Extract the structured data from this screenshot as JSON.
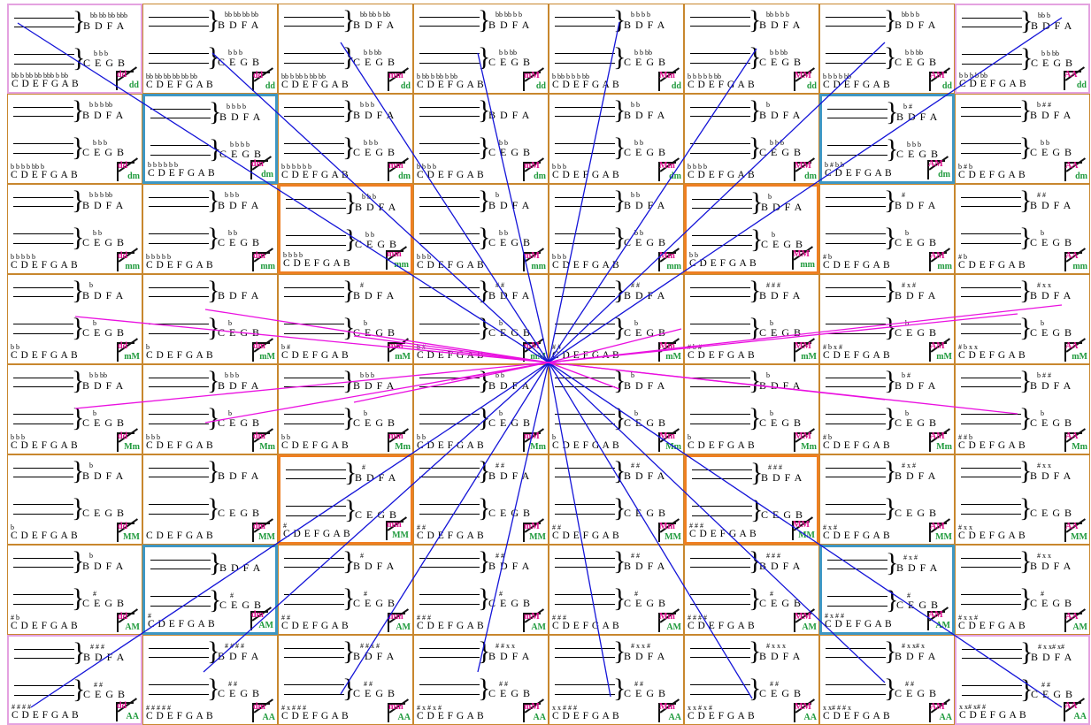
{
  "grid": {
    "rows": [
      [
        {
          "top": "bb bb bb bbb",
          "top_label": "B D F A",
          "mid": "b b b",
          "mid_label": "C E G B",
          "bot_acc": "bb b bb bb bbb b bb",
          "bot_label": "C D E F G A B",
          "badge": [
            "dd",
            "dd"
          ]
        },
        {
          "top": "bb bb bb bb",
          "top_label": "B D F A",
          "mid": "b b b",
          "mid_label": "C E G B",
          "bot_acc": "bb bb bb bb bb bb",
          "bot_label": "C D E F G A B",
          "badge": [
            "dd",
            "dd"
          ]
        },
        {
          "top": "bb bb b bb",
          "top_label": "B D F A",
          "mid": "b b bb",
          "mid_label": "C E G B",
          "bot_acc": "bb b bb b bb bb",
          "bot_label": "C D E F G A B",
          "badge": [
            "mm",
            "dd"
          ]
        },
        {
          "top": "bb bb b b",
          "top_label": "B D F A",
          "mid": "b b bb",
          "mid_label": "C E G B",
          "bot_acc": "b bb b bb b bb",
          "bot_label": "C D E F G A B",
          "badge": [
            "mM",
            "dd"
          ]
        },
        {
          "top": "b b b b",
          "top_label": "B D F A",
          "mid": "b b bb",
          "mid_label": "C E G B",
          "bot_acc": "b bb b b b bb",
          "bot_label": "C D E F G A B",
          "badge": [
            "Mm",
            "dd"
          ]
        },
        {
          "top": "bb b b b",
          "top_label": "B D F A",
          "mid": "b b bb",
          "mid_label": "C E G B",
          "bot_acc": "b b b b b bb",
          "bot_label": "C D E F G A B",
          "badge": [
            "MM",
            "dd"
          ]
        },
        {
          "top": "bb b b",
          "top_label": "B D F A",
          "mid": "b b bb",
          "mid_label": "C E G B",
          "bot_acc": "b b b b bb",
          "bot_label": "C D E F G A B",
          "badge": [
            "AM",
            "dd"
          ]
        },
        {
          "top": "bb b",
          "top_label": "B D F A",
          "mid": "b b bb",
          "mid_label": "C E G B",
          "bot_acc": "b b b b bb",
          "bot_label": "C D E F G A B",
          "badge": [
            "AA",
            "dd"
          ]
        }
      ],
      [
        {
          "top": "b b b bb",
          "top_label": "B D F A",
          "mid": "b b b",
          "mid_label": "C E G B",
          "bot_acc": "b b b b bb b",
          "bot_label": "C D E F G A B",
          "badge": [
            "dd",
            "dm"
          ]
        },
        {
          "top": "b b b b",
          "top_label": "B D F A",
          "mid": "b b b b",
          "mid_label": "C E G B",
          "bot_acc": "b b b b b b",
          "bot_label": "C D E F G A B",
          "badge": [
            "dm",
            "dm"
          ]
        },
        {
          "top": "b b b",
          "top_label": "B D F A",
          "mid": "b b b",
          "mid_label": "C E G B",
          "bot_acc": "b b b b b b",
          "bot_label": "C D E F G A B",
          "badge": [
            "mm",
            "dm"
          ]
        },
        {
          "top": "",
          "top_label": "B D F A",
          "mid": "b b",
          "mid_label": "C E G B",
          "bot_acc": "b b b b",
          "bot_label": "C D E F G A B",
          "badge": [
            "mM",
            "dm"
          ]
        },
        {
          "top": "b b",
          "top_label": "B D F A",
          "mid": "b b",
          "mid_label": "C E G B",
          "bot_acc": "b b b",
          "bot_label": "C D E F G A B",
          "badge": [
            "Mm",
            "dm"
          ]
        },
        {
          "top": "b",
          "top_label": "B D F A",
          "mid": "b b b",
          "mid_label": "C E G B",
          "bot_acc": "b b b b",
          "bot_label": "C D E F G A B",
          "badge": [
            "MM",
            "dm"
          ]
        },
        {
          "top": "b #",
          "top_label": "B D F A",
          "mid": "b b b",
          "mid_label": "C E G B",
          "bot_acc": "b # b b",
          "bot_label": "C D E F G A B",
          "badge": [
            "AM",
            "dm"
          ]
        },
        {
          "top": "b # #",
          "top_label": "B D F A",
          "mid": "b b",
          "mid_label": "C E G B",
          "bot_acc": "b # b",
          "bot_label": "C D E F G A B",
          "badge": [
            "AA",
            "dm"
          ]
        }
      ],
      [
        {
          "top": "b b b bb",
          "top_label": "B D F A",
          "mid": "b b",
          "mid_label": "C E G B",
          "bot_acc": "b b b b b",
          "bot_label": "C D E F G A B",
          "badge": [
            "dd",
            "mm"
          ]
        },
        {
          "top": "b b b",
          "top_label": "B D F A",
          "mid": "b b",
          "mid_label": "C E G B",
          "bot_acc": "b b b b b",
          "bot_label": "C D E F G A B",
          "badge": [
            "dm",
            "mm"
          ]
        },
        {
          "top": "b b b",
          "top_label": "B D F A",
          "mid": "b b",
          "mid_label": "C E G B",
          "bot_acc": "b b b b",
          "bot_label": "C D E F G A B",
          "badge": [
            "mm",
            "mm"
          ]
        },
        {
          "top": "b",
          "top_label": "B D F A",
          "mid": "b b",
          "mid_label": "C E G B",
          "bot_acc": "b b b",
          "bot_label": "C D E F G A B",
          "badge": [
            "mM",
            "mm"
          ]
        },
        {
          "top": "b b",
          "top_label": "B D F A",
          "mid": "b b",
          "mid_label": "C E G B",
          "bot_acc": "b b b",
          "bot_label": "C D E F G A B",
          "badge": [
            "Mm",
            "mm"
          ]
        },
        {
          "top": "b",
          "top_label": "B D F A",
          "mid": "b",
          "mid_label": "C E G B",
          "bot_acc": "b b",
          "bot_label": "C D E F G A B",
          "badge": [
            "MM",
            "mm"
          ]
        },
        {
          "top": "#",
          "top_label": "B D F A",
          "mid": "b",
          "mid_label": "C E G B",
          "bot_acc": "# b",
          "bot_label": "C D E F G A B",
          "badge": [
            "AM",
            "mm"
          ]
        },
        {
          "top": "# #",
          "top_label": "B D F A",
          "mid": "b",
          "mid_label": "C E G B",
          "bot_acc": "# b",
          "bot_label": "C D E F G A B",
          "badge": [
            "AA",
            "mm"
          ]
        }
      ],
      [
        {
          "top": "b",
          "top_label": "B D F A",
          "mid": "b",
          "mid_label": "C E G B",
          "bot_acc": "b b",
          "bot_label": "C D E F G A B",
          "badge": [
            "dd",
            "mM"
          ]
        },
        {
          "top": "",
          "top_label": "B D F A",
          "mid": "b",
          "mid_label": "C E G B",
          "bot_acc": "b",
          "bot_label": "C D E F G A B",
          "badge": [
            "dm",
            "mM"
          ]
        },
        {
          "top": "#",
          "top_label": "B D F A",
          "mid": "b",
          "mid_label": "C E G B",
          "bot_acc": "b #",
          "bot_label": "C D E F G A B",
          "badge": [
            "mm",
            "mM"
          ]
        },
        {
          "top": "# #",
          "top_label": "B D F A",
          "mid": "b",
          "mid_label": "C E G B",
          "bot_acc": "b #",
          "bot_label": "C D E F G A B",
          "badge": [
            "mM",
            "mM"
          ]
        },
        {
          "top": "# #",
          "top_label": "B D F A",
          "mid": "b",
          "mid_label": "C E G B",
          "bot_acc": "# #",
          "bot_label": "C D E F G A B",
          "badge": [
            "Mm",
            "mM"
          ]
        },
        {
          "top": "# # #",
          "top_label": "B D F A",
          "mid": "b",
          "mid_label": "C E G B",
          "bot_acc": "# b #",
          "bot_label": "C D E F G A B",
          "badge": [
            "MM",
            "mM"
          ]
        },
        {
          "top": "# x #",
          "top_label": "B D F A",
          "mid": "b",
          "mid_label": "C E G B",
          "bot_acc": "# b x #",
          "bot_label": "C D E F G A B",
          "badge": [
            "AM",
            "mM"
          ]
        },
        {
          "top": "# x x",
          "top_label": "B D F A",
          "mid": "b",
          "mid_label": "C E G B",
          "bot_acc": "# b x x",
          "bot_label": "C D E F G A B",
          "badge": [
            "AA",
            "mM"
          ]
        }
      ],
      [
        {
          "top": "b b bb",
          "top_label": "B D F A",
          "mid": "b",
          "mid_label": "C E G B",
          "bot_acc": "b b b",
          "bot_label": "C D E F G A B",
          "badge": [
            "dd",
            "Mm"
          ]
        },
        {
          "top": "b b b",
          "top_label": "B D F A",
          "mid": "b",
          "mid_label": "C E G B",
          "bot_acc": "b b b",
          "bot_label": "C D E F G A B",
          "badge": [
            "dm",
            "Mm"
          ]
        },
        {
          "top": "b b b",
          "top_label": "B D F A",
          "mid": "b",
          "mid_label": "C E G B",
          "bot_acc": "b b",
          "bot_label": "C D E F G A B",
          "badge": [
            "mm",
            "Mm"
          ]
        },
        {
          "top": "b b",
          "top_label": "B D F A",
          "mid": "b",
          "mid_label": "C E G B",
          "bot_acc": "b b",
          "bot_label": "C D E F G A B",
          "badge": [
            "mM",
            "Mm"
          ]
        },
        {
          "top": "b",
          "top_label": "B D F A",
          "mid": "b",
          "mid_label": "C E G B",
          "bot_acc": "b",
          "bot_label": "C D E F G A B",
          "badge": [
            "Mm",
            "Mm"
          ]
        },
        {
          "top": "b",
          "top_label": "B D F A",
          "mid": "b",
          "mid_label": "C E G B",
          "bot_acc": "b",
          "bot_label": "C D E F G A B",
          "badge": [
            "MM",
            "Mm"
          ]
        },
        {
          "top": "b #",
          "top_label": "B D F A",
          "mid": "b",
          "mid_label": "C E G B",
          "bot_acc": "# b",
          "bot_label": "C D E F G A B",
          "badge": [
            "AM",
            "Mm"
          ]
        },
        {
          "top": "b # #",
          "top_label": "B D F A",
          "mid": "b",
          "mid_label": "C E G B",
          "bot_acc": "# # b",
          "bot_label": "C D E F G A B",
          "badge": [
            "AA",
            "Mm"
          ]
        }
      ],
      [
        {
          "top": "b",
          "top_label": "B D F A",
          "mid": "",
          "mid_label": "C E G B",
          "bot_acc": "b",
          "bot_label": "C D E F G A B",
          "badge": [
            "dd",
            "MM"
          ]
        },
        {
          "top": "",
          "top_label": "B D F A",
          "mid": "",
          "mid_label": "C E G B",
          "bot_acc": "",
          "bot_label": "C D E F G A B",
          "badge": [
            "dm",
            "MM"
          ]
        },
        {
          "top": "#",
          "top_label": "B D F A",
          "mid": "",
          "mid_label": "C E G B",
          "bot_acc": "#",
          "bot_label": "C D E F G A B",
          "badge": [
            "mm",
            "MM"
          ]
        },
        {
          "top": "# #",
          "top_label": "B D F A",
          "mid": "",
          "mid_label": "C E G B",
          "bot_acc": "# #",
          "bot_label": "C D E F G A B",
          "badge": [
            "mM",
            "MM"
          ]
        },
        {
          "top": "# #",
          "top_label": "B D F A",
          "mid": "",
          "mid_label": "C E G B",
          "bot_acc": "# #",
          "bot_label": "C D E F G A B",
          "badge": [
            "Mm",
            "MM"
          ]
        },
        {
          "top": "# # #",
          "top_label": "B D F A",
          "mid": "",
          "mid_label": "C E G B",
          "bot_acc": "# # #",
          "bot_label": "C D E F G A B",
          "badge": [
            "MM",
            "MM"
          ]
        },
        {
          "top": "# x #",
          "top_label": "B D F A",
          "mid": "",
          "mid_label": "C E G B",
          "bot_acc": "# x #",
          "bot_label": "C D E F G A B",
          "badge": [
            "AM",
            "MM"
          ]
        },
        {
          "top": "# x x",
          "top_label": "B D F A",
          "mid": "",
          "mid_label": "C E G B",
          "bot_acc": "# x x",
          "bot_label": "C D E F G A B",
          "badge": [
            "AA",
            "MM"
          ]
        }
      ],
      [
        {
          "top": "b",
          "top_label": "B D F A",
          "mid": "#",
          "mid_label": "C E G B",
          "bot_acc": "# b",
          "bot_label": "C D E F G A B",
          "badge": [
            "dd",
            "AM"
          ]
        },
        {
          "top": "",
          "top_label": "B D F A",
          "mid": "#",
          "mid_label": "C E G B",
          "bot_acc": "#",
          "bot_label": "C D E F G A B",
          "badge": [
            "dm",
            "AM"
          ]
        },
        {
          "top": "#",
          "top_label": "B D F A",
          "mid": "#",
          "mid_label": "C E G B",
          "bot_acc": "# #",
          "bot_label": "C D E F G A B",
          "badge": [
            "mm",
            "AM"
          ]
        },
        {
          "top": "# #",
          "top_label": "B D F A",
          "mid": "#",
          "mid_label": "C E G B",
          "bot_acc": "# # #",
          "bot_label": "C D E F G A B",
          "badge": [
            "mM",
            "AM"
          ]
        },
        {
          "top": "# #",
          "top_label": "B D F A",
          "mid": "#",
          "mid_label": "C E G B",
          "bot_acc": "# # #",
          "bot_label": "C D E F G A B",
          "badge": [
            "Mm",
            "AM"
          ]
        },
        {
          "top": "# # #",
          "top_label": "B D F A",
          "mid": "#",
          "mid_label": "C E G B",
          "bot_acc": "# # # #",
          "bot_label": "C D E F G A B",
          "badge": [
            "MM",
            "AM"
          ]
        },
        {
          "top": "# x #",
          "top_label": "B D F A",
          "mid": "#",
          "mid_label": "C E G B",
          "bot_acc": "# x # #",
          "bot_label": "C D E F G A B",
          "badge": [
            "AM",
            "AM"
          ]
        },
        {
          "top": "# x x",
          "top_label": "B D F A",
          "mid": "#",
          "mid_label": "C E G B",
          "bot_acc": "# x x #",
          "bot_label": "C D E F G A B",
          "badge": [
            "AA",
            "AM"
          ]
        }
      ],
      [
        {
          "top": "# # #",
          "top_label": "B D F A",
          "mid": "# #",
          "mid_label": "C E G B",
          "bot_acc": "# # # #",
          "bot_label": "C D E F G A B",
          "badge": [
            "dd",
            "AA"
          ]
        },
        {
          "top": "# # # #",
          "top_label": "B D F A",
          "mid": "# #",
          "mid_label": "C E G B",
          "bot_acc": "# # # # #",
          "bot_label": "C D E F G A B",
          "badge": [
            "dm",
            "AA"
          ]
        },
        {
          "top": "# # x #",
          "top_label": "B D F A",
          "mid": "# #",
          "mid_label": "C E G B",
          "bot_acc": "# x # # #",
          "bot_label": "C D E F G A B",
          "badge": [
            "mm",
            "AA"
          ]
        },
        {
          "top": "# # x x",
          "top_label": "B D F A",
          "mid": "# #",
          "mid_label": "C E G B",
          "bot_acc": "# x # x #",
          "bot_label": "C D E F G A B",
          "badge": [
            "mM",
            "AA"
          ]
        },
        {
          "top": "# x x #",
          "top_label": "B D F A",
          "mid": "# #",
          "mid_label": "C E G B",
          "bot_acc": "x x # # #",
          "bot_label": "C D E F G A B",
          "badge": [
            "Mm",
            "AA"
          ]
        },
        {
          "top": "# x x x",
          "top_label": "B D F A",
          "mid": "# #",
          "mid_label": "C E G B",
          "bot_acc": "x x # x #",
          "bot_label": "C D E F G A B",
          "badge": [
            "MM",
            "AA"
          ]
        },
        {
          "top": "# x x# x",
          "top_label": "B D F A",
          "mid": "# #",
          "mid_label": "C E G B",
          "bot_acc": "x x# # # x",
          "bot_label": "C D E F G A B",
          "badge": [
            "AM",
            "AA"
          ]
        },
        {
          "top": "# x x# x#",
          "top_label": "B D F A",
          "mid": "# #",
          "mid_label": "C E G B",
          "bot_acc": "x x# x# #",
          "bot_label": "C D E F G A B",
          "badge": [
            "AA",
            "AA"
          ]
        }
      ]
    ],
    "highlights": {
      "pink": [
        [
          0,
          0
        ],
        [
          0,
          7
        ],
        [
          7,
          0
        ],
        [
          7,
          7
        ]
      ],
      "blue": [
        [
          1,
          1
        ],
        [
          1,
          6
        ],
        [
          6,
          1
        ],
        [
          6,
          6
        ]
      ],
      "orange": [
        [
          2,
          2
        ],
        [
          2,
          5
        ],
        [
          5,
          2
        ],
        [
          5,
          5
        ]
      ]
    }
  },
  "colors": {
    "cell_border": "#c8872e",
    "pink": "#e4a2e0",
    "blue": "#3d97c4",
    "orange": "#ee7f22",
    "blue_line": "#1414d8",
    "magenta_line": "#ea10e0",
    "badge_top": "#e0118f",
    "badge_bottom": "#1f9a3c"
  }
}
